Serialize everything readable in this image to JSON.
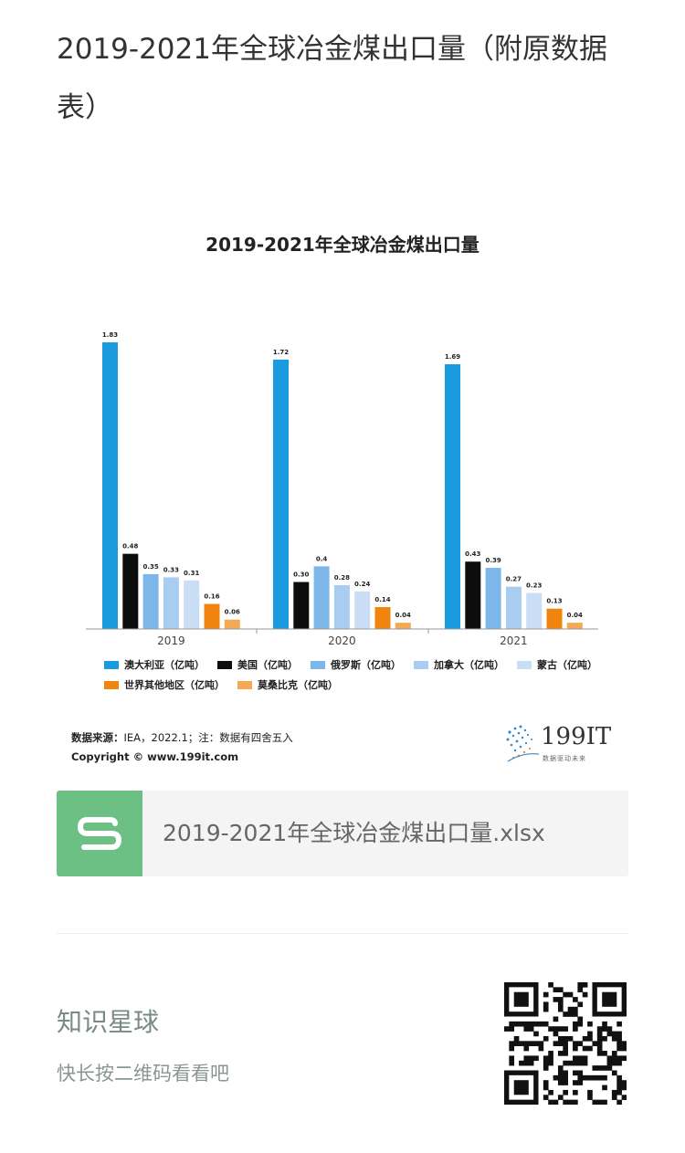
{
  "post": {
    "title": "2019-2021年全球冶金煤出口量（附原数据表）"
  },
  "chart_data": {
    "type": "bar",
    "title": "2019-2021年全球冶金煤出口量",
    "categories": [
      "2019",
      "2020",
      "2021"
    ],
    "series": [
      {
        "name": "澳大利亚（亿吨）",
        "color": "#1a9be0",
        "values": [
          1.83,
          1.72,
          1.69
        ]
      },
      {
        "name": "美国（亿吨）",
        "color": "#0d0d0d",
        "values": [
          0.48,
          0.3,
          0.43
        ]
      },
      {
        "name": "俄罗斯（亿吨）",
        "color": "#7db6e9",
        "values": [
          0.35,
          0.4,
          0.39
        ]
      },
      {
        "name": "加拿大（亿吨）",
        "color": "#a8cdf0",
        "values": [
          0.33,
          0.28,
          0.27
        ]
      },
      {
        "name": "蒙古（亿吨）",
        "color": "#c9def4",
        "values": [
          0.31,
          0.24,
          0.23
        ]
      },
      {
        "name": "世界其他地区（亿吨）",
        "color": "#f0840f",
        "values": [
          0.16,
          0.14,
          0.13
        ]
      },
      {
        "name": "莫桑比克（亿吨）",
        "color": "#f3a956",
        "values": [
          0.06,
          0.04,
          0.04
        ]
      }
    ],
    "value_labels": [
      [
        "1.83",
        "0.48",
        "0.35",
        "0.33",
        "0.31",
        "0.16",
        "0.06"
      ],
      [
        "1.72",
        "0.30",
        "0.4",
        "0.28",
        "0.24",
        "0.14",
        "0.04"
      ],
      [
        "1.69",
        "0.43",
        "0.39",
        "0.27",
        "0.23",
        "0.13",
        "0.04"
      ]
    ],
    "legend_position": "bottom",
    "grid": false
  },
  "source": {
    "label": "数据来源：",
    "text": "IEA，2022.1；注：数据有四舍五入",
    "copyright": "Copyright © www.199it.com"
  },
  "logo": {
    "text": "199IT",
    "tagline": "数据驱动未来"
  },
  "attachment": {
    "filename": "2019-2021年全球冶金煤出口量.xlsx",
    "icon": "spreadsheet-icon",
    "color": "#6cc084"
  },
  "footer": {
    "title": "知识星球",
    "subtitle": "快长按二维码看看吧"
  }
}
